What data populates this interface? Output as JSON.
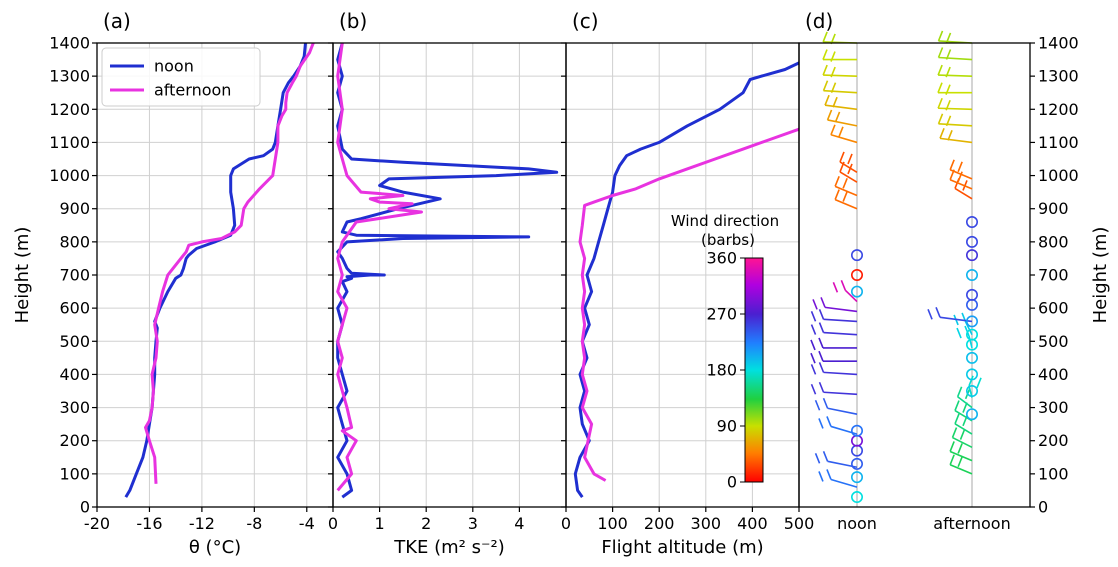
{
  "figure": {
    "ylabel_left": "Height (m)",
    "ylabel_right": "Height (m)"
  },
  "chart_data": [
    {
      "panel": "(a)",
      "type": "line",
      "xlabel": "θ (°C)",
      "xlim": [
        -20,
        -2
      ],
      "xticks": [
        -20,
        -16,
        -12,
        -8,
        -4
      ],
      "ylim": [
        0,
        1400
      ],
      "grid": true,
      "legend": "top-left",
      "series": [
        {
          "name": "noon",
          "color": "#1f2fd0",
          "x": [
            -17.8,
            -17.5,
            -17.0,
            -16.5,
            -16.2,
            -16.0,
            -15.8,
            -15.7,
            -15.6,
            -15.6,
            -15.5,
            -15.4,
            -15.6,
            -15.2,
            -14.6,
            -14.0,
            -13.6,
            -13.4,
            -13.2,
            -13.0,
            -12.4,
            -11.0,
            -9.8,
            -9.5,
            -9.6,
            -9.8,
            -9.8,
            -9.6,
            -8.4,
            -7.3,
            -6.6,
            -6.4,
            -6.2,
            -6.0,
            -5.8,
            -5.4,
            -5.0,
            -4.5,
            -4.2,
            -4.1
          ],
          "y": [
            30,
            50,
            100,
            150,
            200,
            250,
            300,
            350,
            400,
            450,
            500,
            540,
            560,
            600,
            650,
            690,
            700,
            720,
            750,
            760,
            780,
            800,
            820,
            850,
            900,
            950,
            1000,
            1020,
            1050,
            1060,
            1080,
            1100,
            1150,
            1200,
            1250,
            1280,
            1300,
            1330,
            1360,
            1400
          ]
        },
        {
          "name": "afternoon",
          "color": "#e833e0",
          "x": [
            -15.5,
            -15.6,
            -16.0,
            -16.3,
            -16.0,
            -15.8,
            -15.7,
            -15.8,
            -15.5,
            -15.4,
            -15.6,
            -15.3,
            -15.0,
            -14.6,
            -14.2,
            -13.6,
            -13.2,
            -13.0,
            -12.0,
            -10.5,
            -9.5,
            -9.0,
            -8.8,
            -8.5,
            -7.6,
            -6.6,
            -6.4,
            -6.2,
            -6.2,
            -5.9,
            -5.6,
            -5.6,
            -5.5,
            -5.1,
            -4.8,
            -4.5,
            -3.8,
            -3.5
          ],
          "y": [
            70,
            150,
            200,
            240,
            260,
            300,
            350,
            400,
            450,
            500,
            550,
            600,
            650,
            700,
            720,
            750,
            770,
            790,
            800,
            810,
            830,
            850,
            900,
            920,
            960,
            1000,
            1050,
            1100,
            1150,
            1180,
            1200,
            1220,
            1250,
            1280,
            1300,
            1330,
            1370,
            1400
          ]
        }
      ]
    },
    {
      "panel": "(b)",
      "type": "line",
      "xlabel": "TKE (m² s⁻²)",
      "xlim": [
        0,
        5
      ],
      "xticks": [
        0,
        1,
        2,
        3,
        4
      ],
      "ylim": [
        0,
        1400
      ],
      "grid": true,
      "series": [
        {
          "name": "noon",
          "color": "#1f2fd0",
          "x": [
            0.2,
            0.4,
            0.3,
            0.1,
            0.3,
            0.2,
            0.1,
            0.3,
            0.2,
            0.1,
            0.1,
            0.2,
            0.1,
            0.3,
            0.2,
            0.4,
            0.3,
            0.8,
            1.1,
            0.4,
            0.3,
            0.2,
            0.1,
            0.3,
            1.5,
            4.2,
            0.5,
            0.2,
            0.3,
            0.6,
            1.4,
            2.3,
            1.5,
            1.0,
            1.2,
            3.5,
            4.8,
            4.2,
            1.5,
            0.4,
            0.2,
            0.1,
            0.2,
            0.1,
            0.2,
            0.1,
            0.2
          ],
          "y": [
            30,
            50,
            100,
            150,
            200,
            250,
            300,
            350,
            400,
            450,
            500,
            550,
            600,
            650,
            680,
            690,
            695,
            700,
            700,
            705,
            720,
            750,
            770,
            800,
            810,
            815,
            820,
            830,
            860,
            870,
            900,
            930,
            950,
            970,
            990,
            1000,
            1010,
            1020,
            1040,
            1050,
            1080,
            1150,
            1200,
            1250,
            1300,
            1350,
            1400
          ]
        },
        {
          "name": "afternoon",
          "color": "#e833e0",
          "x": [
            0.1,
            0.4,
            0.3,
            0.5,
            0.2,
            0.4,
            0.3,
            0.2,
            0.1,
            0.2,
            0.1,
            0.2,
            0.3,
            0.1,
            0.2,
            0.1,
            0.2,
            0.5,
            1.9,
            1.2,
            1.7,
            1.0,
            0.8,
            1.5,
            0.6,
            0.3,
            0.2,
            0.1,
            0.2,
            0.1,
            0.2
          ],
          "y": [
            50,
            100,
            150,
            200,
            230,
            240,
            300,
            350,
            400,
            450,
            500,
            550,
            600,
            650,
            700,
            750,
            800,
            860,
            890,
            900,
            915,
            920,
            930,
            940,
            950,
            1000,
            1050,
            1100,
            1200,
            1300,
            1400
          ]
        }
      ]
    },
    {
      "panel": "(c)",
      "type": "line",
      "xlabel": "Flight altitude (m)",
      "xlim": [
        0,
        500
      ],
      "xticks": [
        0,
        100,
        200,
        300,
        400,
        500
      ],
      "ylim": [
        0,
        1400
      ],
      "grid": true,
      "series": [
        {
          "name": "noon",
          "color": "#1f2fd0",
          "x": [
            35,
            25,
            20,
            30,
            50,
            35,
            30,
            40,
            30,
            45,
            35,
            50,
            40,
            55,
            45,
            60,
            70,
            80,
            90,
            100,
            105,
            115,
            130,
            160,
            200,
            260,
            330,
            380,
            395,
            420,
            470,
            500
          ],
          "y": [
            30,
            50,
            100,
            150,
            200,
            250,
            300,
            350,
            400,
            450,
            500,
            550,
            600,
            650,
            700,
            750,
            800,
            850,
            900,
            950,
            1000,
            1030,
            1060,
            1080,
            1100,
            1150,
            1200,
            1250,
            1290,
            1300,
            1320,
            1340
          ]
        },
        {
          "name": "afternoon",
          "color": "#e833e0",
          "x": [
            85,
            60,
            40,
            55,
            35,
            45,
            35,
            40,
            35,
            40,
            35,
            40,
            35,
            40,
            30,
            35,
            40,
            60,
            100,
            150,
            200,
            260,
            320,
            380,
            440,
            500
          ],
          "y": [
            80,
            100,
            150,
            250,
            300,
            350,
            400,
            450,
            500,
            550,
            600,
            650,
            700,
            750,
            800,
            850,
            910,
            920,
            940,
            960,
            990,
            1020,
            1050,
            1080,
            1110,
            1140
          ]
        }
      ]
    },
    {
      "panel": "(d)",
      "type": "scatter",
      "categories": [
        "noon",
        "afternoon"
      ],
      "ylim": [
        0,
        1400
      ],
      "colorbar": {
        "title": "Wind direction\n(barbs)",
        "ticks": [
          0,
          90,
          180,
          270,
          360
        ]
      },
      "series": [
        {
          "category": "noon",
          "calm_height": [
            30,
            90,
            130,
            170,
            200,
            230,
            650,
            700,
            760
          ],
          "calm_direction": [
            180,
            200,
            240,
            250,
            290,
            230,
            200,
            10,
            250
          ],
          "barb_height": [
            60,
            120,
            220,
            280,
            340,
            400,
            440,
            480,
            520,
            560,
            590,
            620,
            900,
            940,
            980,
            1010,
            1100,
            1150,
            1200,
            1250,
            1300,
            1350,
            1400
          ],
          "barb_direction": [
            230,
            240,
            230,
            240,
            260,
            260,
            270,
            270,
            260,
            260,
            290,
            340,
            40,
            40,
            30,
            30,
            50,
            60,
            70,
            80,
            85,
            90,
            95
          ]
        },
        {
          "category": "afternoon",
          "calm_height": [
            280,
            350,
            400,
            450,
            490,
            520,
            560,
            610,
            640,
            700,
            760,
            800,
            860
          ],
          "calm_direction": [
            200,
            190,
            190,
            195,
            180,
            180,
            210,
            240,
            250,
            200,
            260,
            250,
            250
          ],
          "barb_height": [
            100,
            140,
            180,
            220,
            260,
            300,
            330,
            480,
            520,
            560,
            930,
            960,
            990,
            1100,
            1150,
            1200,
            1250,
            1300,
            1350,
            1400
          ],
          "barb_direction": [
            140,
            140,
            145,
            150,
            150,
            155,
            175,
            185,
            190,
            250,
            30,
            40,
            40,
            70,
            80,
            85,
            90,
            95,
            100,
            100
          ]
        }
      ]
    }
  ]
}
